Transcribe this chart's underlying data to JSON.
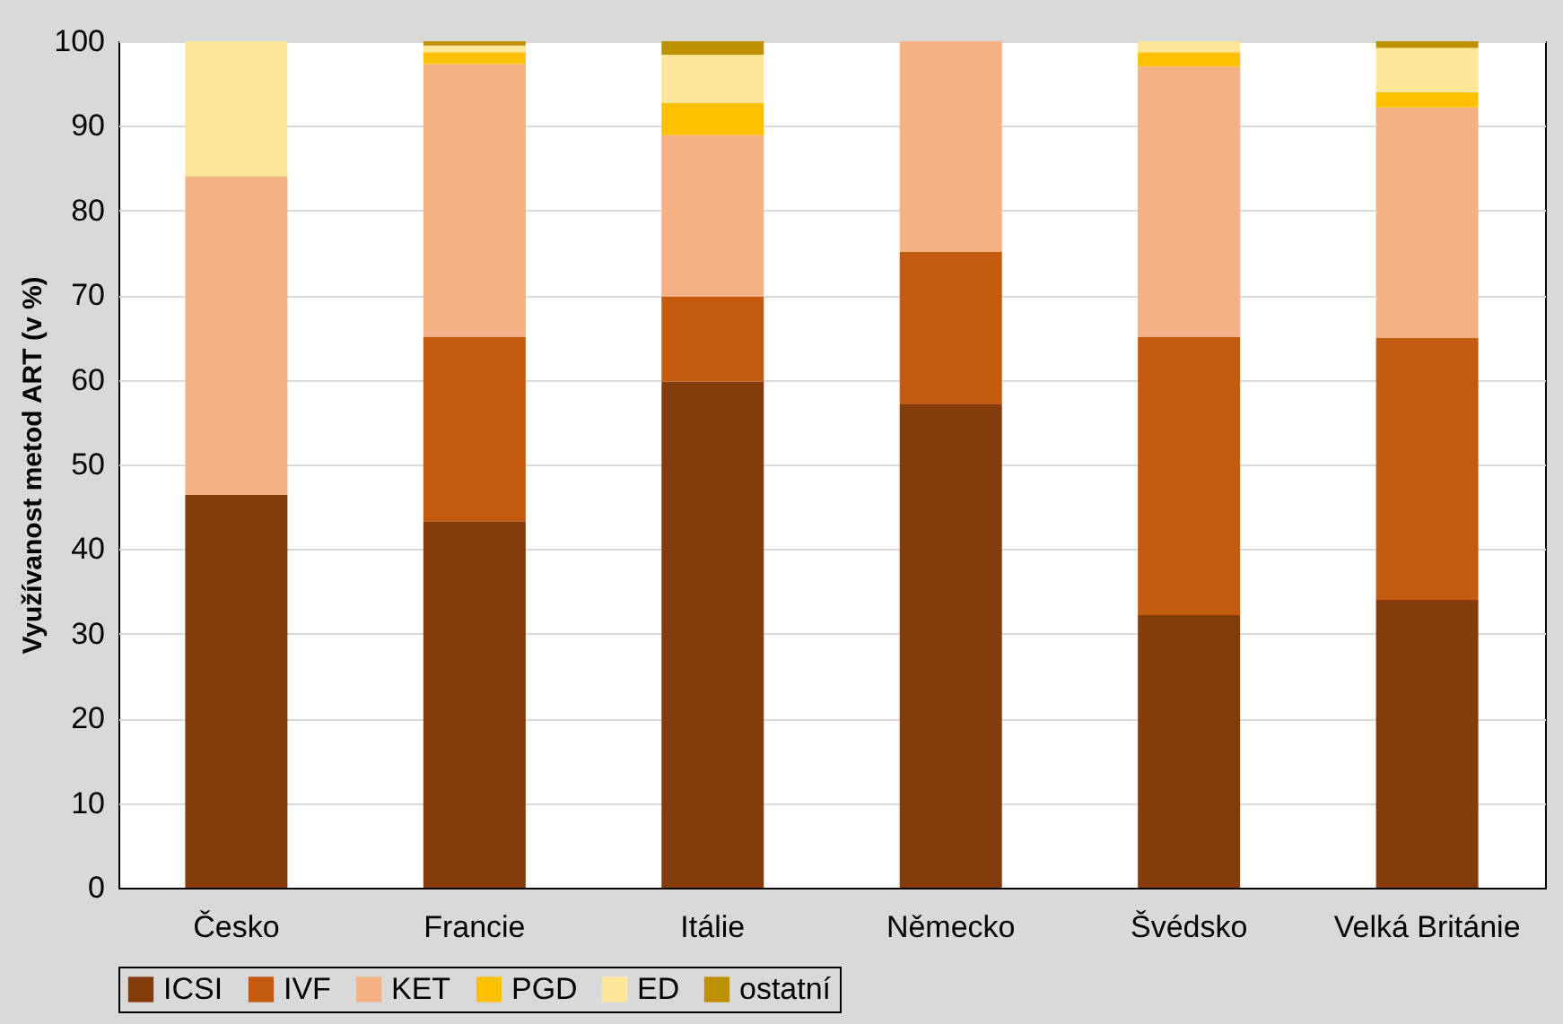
{
  "chart_data": {
    "type": "bar",
    "stacked": true,
    "ylabel": "Využívanost metod ART (v %)",
    "categories": [
      "Česko",
      "Francie",
      "Itálie",
      "Německo",
      "Švédsko",
      "Velká Británie"
    ],
    "series": [
      {
        "name": "ICSI",
        "color": "#843c0c",
        "values": [
          46.4,
          43.3,
          59.8,
          57.1,
          32.2,
          34.0
        ]
      },
      {
        "name": "IVF",
        "color": "#c55a11",
        "values": [
          0,
          21.8,
          10.0,
          18.0,
          32.9,
          31.0
        ]
      },
      {
        "name": "KET",
        "color": "#f4b183",
        "values": [
          37.6,
          32.2,
          19.1,
          24.9,
          31.9,
          27.2
        ]
      },
      {
        "name": "PGD",
        "color": "#ffc000",
        "values": [
          0,
          1.4,
          3.8,
          0,
          1.7,
          1.8
        ]
      },
      {
        "name": "ED",
        "color": "#ffe699",
        "values": [
          16.0,
          0.8,
          5.7,
          0,
          1.3,
          5.2
        ]
      },
      {
        "name": "ostatní",
        "color": "#bf9000",
        "values": [
          0,
          0.5,
          1.6,
          0,
          0,
          0.8
        ]
      }
    ],
    "ylim": [
      0,
      100
    ],
    "yticks": [
      0,
      10,
      20,
      30,
      40,
      50,
      60,
      70,
      80,
      90,
      100
    ],
    "grid": "y",
    "legend": "bottom"
  }
}
